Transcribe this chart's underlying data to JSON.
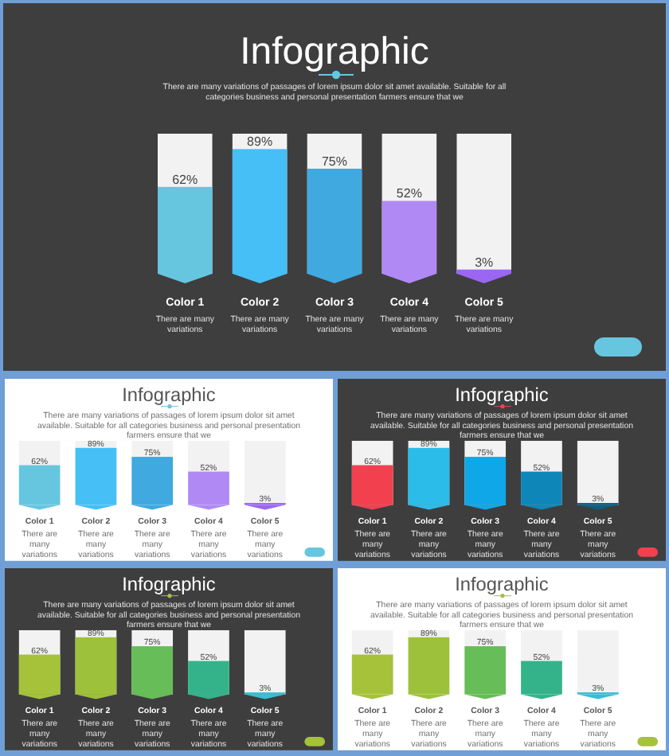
{
  "chart_data": [
    {
      "type": "bar",
      "title": "Infographic",
      "subtitle": "There are many variations of passages of lorem ipsum dolor sit amet available. Suitable for all categories business and personal presentation farmers ensure that we",
      "categories": [
        "Color 1",
        "Color 2",
        "Color 3",
        "Color 4",
        "Color 5"
      ],
      "values": [
        62,
        89,
        75,
        52,
        3
      ],
      "value_labels": [
        "62%",
        "89%",
        "75%",
        "52%",
        "3%"
      ],
      "colors": [
        "#66c6e0",
        "#45bff5",
        "#3fa9e0",
        "#b189f5",
        "#9b66f2"
      ],
      "ylim": [
        0,
        100
      ],
      "tick_labels": false,
      "annotations": [
        "There are many variations",
        "There are many variations",
        "There are many variations",
        "There are many variations",
        "There are many variations"
      ]
    },
    {
      "type": "bar",
      "title": "Infographic",
      "subtitle": "There are many variations of passages of lorem ipsum dolor sit amet available. Suitable for all categories business and personal presentation farmers ensure that we",
      "categories": [
        "Color 1",
        "Color 2",
        "Color 3",
        "Color 4",
        "Color 5"
      ],
      "values": [
        62,
        89,
        75,
        52,
        3
      ],
      "value_labels": [
        "62%",
        "89%",
        "75%",
        "52%",
        "3%"
      ],
      "colors": [
        "#66c6e0",
        "#45bff5",
        "#3fa9e0",
        "#b189f5",
        "#9b66f2"
      ],
      "ylim": [
        0,
        100
      ],
      "tick_labels": false,
      "annotations": [
        "There are many variations",
        "There are many variations",
        "There are many variations",
        "There are many variations",
        "There are many variations"
      ]
    },
    {
      "type": "bar",
      "title": "Infographic",
      "subtitle": "There are many variations of passages of lorem ipsum dolor sit amet available. Suitable for all categories business and personal presentation farmers ensure that we",
      "categories": [
        "Color 1",
        "Color 2",
        "Color 3",
        "Color 4",
        "Color 5"
      ],
      "values": [
        62,
        89,
        75,
        52,
        3
      ],
      "value_labels": [
        "62%",
        "89%",
        "75%",
        "52%",
        "3%"
      ],
      "colors": [
        "#f2404f",
        "#2bbcea",
        "#10a7e8",
        "#0f86b8",
        "#0b5f80"
      ],
      "ylim": [
        0,
        100
      ],
      "tick_labels": false,
      "annotations": [
        "There are many variations",
        "There are many variations",
        "There are many variations",
        "There are many variations",
        "There are many variations"
      ]
    },
    {
      "type": "bar",
      "title": "Infographic",
      "subtitle": "There are many variations of passages of lorem ipsum dolor sit amet available. Suitable for all categories business and personal presentation farmers ensure that we",
      "categories": [
        "Color 1",
        "Color 2",
        "Color 3",
        "Color 4",
        "Color 5"
      ],
      "values": [
        62,
        89,
        75,
        52,
        3
      ],
      "value_labels": [
        "62%",
        "89%",
        "75%",
        "52%",
        "3%"
      ],
      "colors": [
        "#a5c23a",
        "#9dc13b",
        "#67bd57",
        "#34b38b",
        "#36bfd4"
      ],
      "ylim": [
        0,
        100
      ],
      "tick_labels": false,
      "annotations": [
        "There are many variations",
        "There are many variations",
        "There are many variations",
        "There are many variations",
        "There are many variations"
      ]
    },
    {
      "type": "bar",
      "title": "Infographic",
      "subtitle": "There are many variations of passages of lorem ipsum dolor sit amet available. Suitable for all categories business and personal presentation farmers ensure that we",
      "categories": [
        "Color 1",
        "Color 2",
        "Color 3",
        "Color 4",
        "Color 5"
      ],
      "values": [
        62,
        89,
        75,
        52,
        3
      ],
      "value_labels": [
        "62%",
        "89%",
        "75%",
        "52%",
        "3%"
      ],
      "colors": [
        "#a5c23a",
        "#9dc13b",
        "#67bd57",
        "#34b38b",
        "#36bfd4"
      ],
      "ylim": [
        0,
        100
      ],
      "tick_labels": false,
      "annotations": [
        "There are many variations",
        "There are many variations",
        "There are many variations",
        "There are many variations",
        "There are many variations"
      ]
    }
  ]
}
